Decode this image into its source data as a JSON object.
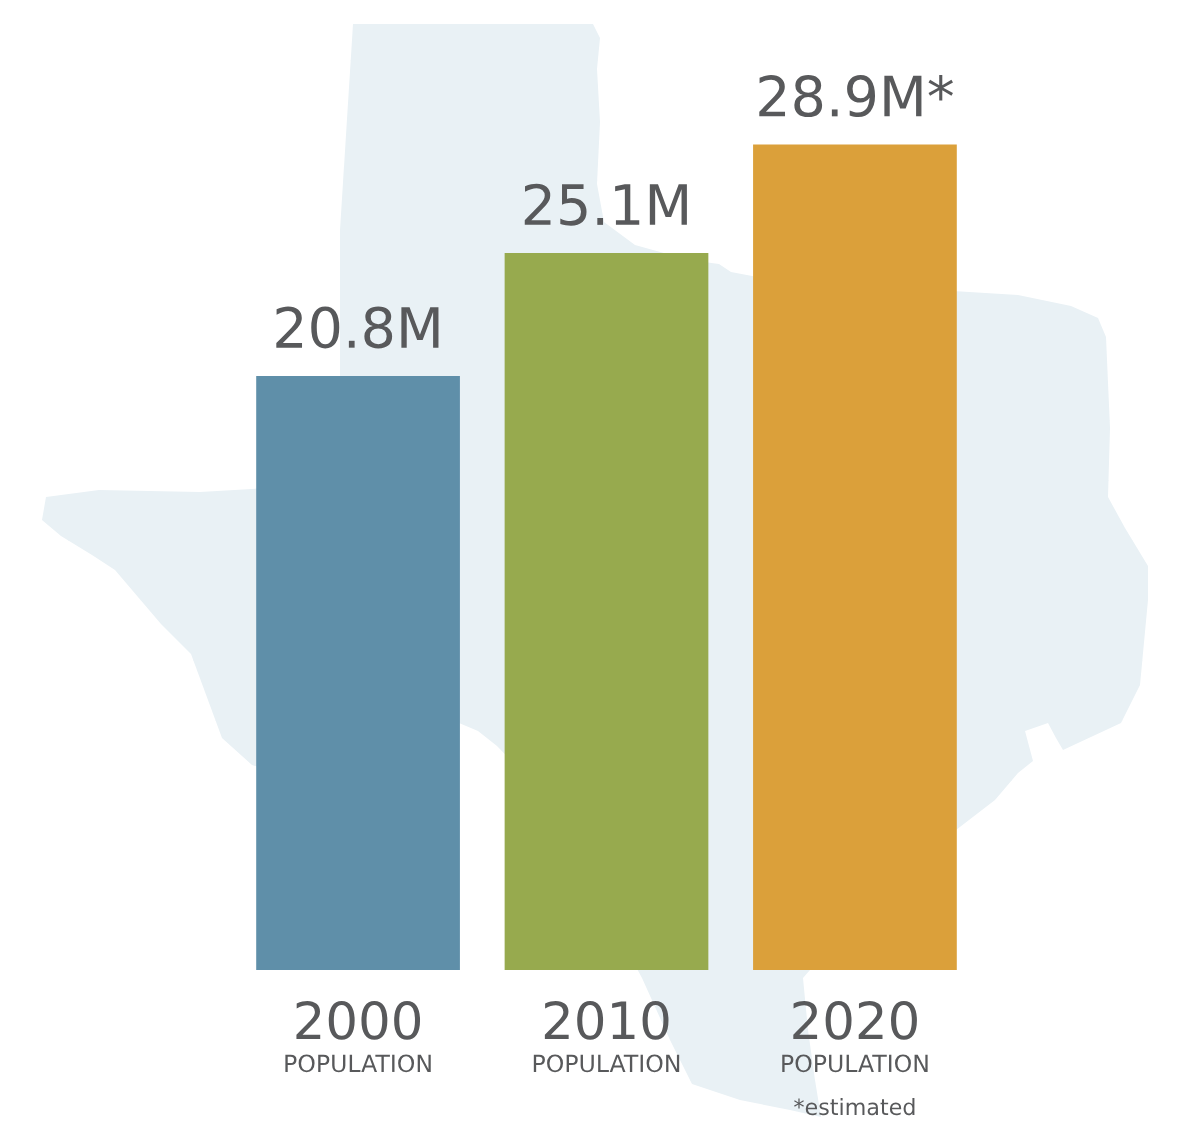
{
  "chart_data": {
    "type": "bar",
    "categories": [
      "2000\nPOPULATION",
      "2010\nPOPULATION",
      "2020\nPOPULATION"
    ],
    "values": [
      20.8,
      25.1,
      28.9
    ],
    "colors": [
      "#5f8fa9",
      "#97aa4e",
      "#dba03a"
    ],
    "value_labels": [
      "20.8M",
      "25.1M",
      "28.9M*"
    ],
    "annotations": [
      "*estimated"
    ],
    "tick_labels": "x"
  }
}
